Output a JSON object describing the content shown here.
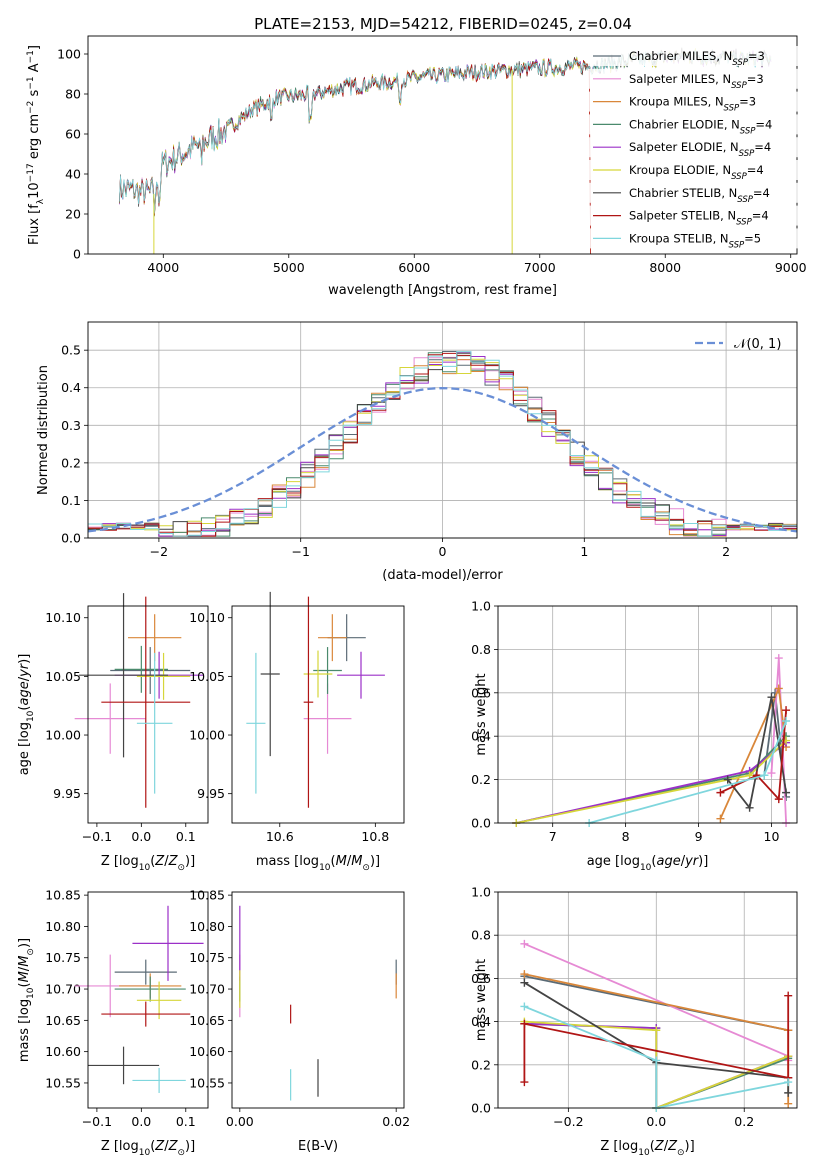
{
  "title": "PLATE=2153, MJD=54212, FIBERID=0245, z=0.04",
  "colors": {
    "Chabrier MILES": "#5b6b76",
    "Salpeter MILES": "#e68ad4",
    "Kroupa MILES": "#d9873a",
    "Chabrier ELODIE": "#4a8a6d",
    "Salpeter ELODIE": "#9b30c8",
    "Kroupa ELODIE": "#d6d63a",
    "Chabrier STELIB": "#444444",
    "Salpeter STELIB": "#b01515",
    "Kroupa STELIB": "#7fd6dd",
    "normal": "#6a8fd6",
    "extra_green": "#a8d63a"
  },
  "chart_data": [
    {
      "type": "line",
      "name": "spectrum",
      "xlabel": "wavelength [Angstrom, rest frame]",
      "ylabel": "Flux [f",
      "ylabel_sub": "λ",
      "ylabel_rest": "10",
      "ylabel_exp": "−17",
      "ylabel_tail": " erg cm",
      "ylabel_exp2": "−2",
      "ylabel_tail2": " s",
      "ylabel_exp3": "−1",
      "ylabel_tail3": " A",
      "ylabel_exp4": "−1",
      "ylabel_end": "]",
      "xlim": [
        3400,
        9050
      ],
      "ylim": [
        0,
        109
      ],
      "xticks": [
        4000,
        5000,
        6000,
        7000,
        8000,
        9000
      ],
      "yticks": [
        0,
        20,
        40,
        60,
        80,
        100
      ],
      "legend_position": "top-right",
      "series": [
        {
          "name": "Chabrier MILES",
          "nssp": "3"
        },
        {
          "name": "Salpeter MILES",
          "nssp": "3"
        },
        {
          "name": "Kroupa MILES",
          "nssp": "3"
        },
        {
          "name": "Chabrier ELODIE",
          "nssp": "4"
        },
        {
          "name": "Salpeter ELODIE",
          "nssp": "4"
        },
        {
          "name": "Kroupa ELODIE",
          "nssp": "4"
        },
        {
          "name": "Chabrier STELIB",
          "nssp": "4"
        },
        {
          "name": "Salpeter STELIB",
          "nssp": "4"
        },
        {
          "name": "Kroupa STELIB",
          "nssp": "5"
        }
      ],
      "continuum": [
        [
          3650,
          33
        ],
        [
          3900,
          30
        ],
        [
          4000,
          45
        ],
        [
          4300,
          55
        ],
        [
          4500,
          62
        ],
        [
          4700,
          72
        ],
        [
          4900,
          78
        ],
        [
          5200,
          80
        ],
        [
          5500,
          84
        ],
        [
          5800,
          86
        ],
        [
          6000,
          88
        ],
        [
          6500,
          91
        ],
        [
          7000,
          93
        ],
        [
          7400,
          94
        ],
        [
          7800,
          97
        ],
        [
          8200,
          99
        ],
        [
          8500,
          98
        ],
        [
          8850,
          97
        ]
      ]
    },
    {
      "type": "line",
      "name": "residual histogram",
      "xlabel": "(data-model)/error",
      "ylabel": "Normed distribution",
      "xlim": [
        -2.5,
        2.5
      ],
      "ylim": [
        0,
        0.575
      ],
      "xticks": [
        -2,
        -1,
        0,
        1,
        2
      ],
      "yticks": [
        0.0,
        0.1,
        0.2,
        0.3,
        0.4,
        0.5
      ],
      "grid": true,
      "legend_position": "top-right",
      "legend_label": "𝒩(0, 1)",
      "bin_width": 0.1
    },
    {
      "type": "scatter",
      "name": "age vs Z",
      "xlabel": "Z [log10(Z/Z⊙)]",
      "ylabel": "age  [log10(age/yr)]",
      "xlim": [
        -0.12,
        0.15
      ],
      "ylim": [
        9.925,
        10.11
      ],
      "xticks": [
        -0.1,
        0.0,
        0.1
      ],
      "yticks": [
        9.95,
        10.0,
        10.05,
        10.1
      ],
      "points": [
        {
          "series": "Chabrier MILES",
          "x": 0.02,
          "xerr": 0.09,
          "y": 10.055,
          "yerr": 0.02
        },
        {
          "series": "Salpeter MILES",
          "x": -0.07,
          "xerr": 0.08,
          "y": 10.014,
          "yerr": 0.03
        },
        {
          "series": "Kroupa MILES",
          "x": 0.03,
          "xerr": 0.06,
          "y": 10.083,
          "yerr": 0.02
        },
        {
          "series": "Chabrier ELODIE",
          "x": 0.0,
          "xerr": 0.06,
          "y": 10.056,
          "yerr": 0.02
        },
        {
          "series": "Salpeter ELODIE",
          "x": 0.04,
          "xerr": 0.1,
          "y": 10.051,
          "yerr": 0.02
        },
        {
          "series": "Kroupa ELODIE",
          "x": 0.05,
          "xerr": 0.06,
          "y": 10.05,
          "yerr": 0.02
        },
        {
          "series": "Chabrier STELIB",
          "x": -0.04,
          "xerr": 0.1,
          "y": 10.051,
          "yerr": 0.07
        },
        {
          "series": "Salpeter STELIB",
          "x": 0.01,
          "xerr": 0.1,
          "y": 10.028,
          "yerr": 0.09
        },
        {
          "series": "Kroupa STELIB",
          "x": 0.03,
          "xerr": 0.04,
          "y": 10.01,
          "yerr": 0.06
        }
      ]
    },
    {
      "type": "scatter",
      "name": "age vs mass",
      "xlabel": "mass [log10(M/M⊙)]",
      "ylabel": "",
      "xlim": [
        10.5,
        10.86
      ],
      "ylim": [
        9.925,
        10.11
      ],
      "xticks": [
        10.6,
        10.8
      ],
      "yticks": [
        9.95,
        10.0,
        10.05,
        10.1
      ],
      "points": [
        {
          "series": "Chabrier MILES",
          "x": 10.74,
          "xerr": 0.04,
          "y": 10.083,
          "yerr": 0.02
        },
        {
          "series": "Salpeter MILES",
          "x": 10.7,
          "xerr": 0.05,
          "y": 10.014,
          "yerr": 0.03
        },
        {
          "series": "Kroupa MILES",
          "x": 10.71,
          "xerr": 0.03,
          "y": 10.083,
          "yerr": 0.02
        },
        {
          "series": "Chabrier ELODIE",
          "x": 10.7,
          "xerr": 0.03,
          "y": 10.055,
          "yerr": 0.02
        },
        {
          "series": "Salpeter ELODIE",
          "x": 10.77,
          "xerr": 0.05,
          "y": 10.051,
          "yerr": 0.02
        },
        {
          "series": "Kroupa ELODIE",
          "x": 10.68,
          "xerr": 0.03,
          "y": 10.052,
          "yerr": 0.02
        },
        {
          "series": "Chabrier STELIB",
          "x": 10.58,
          "xerr": 0.02,
          "y": 10.052,
          "yerr": 0.07
        },
        {
          "series": "Salpeter STELIB",
          "x": 10.66,
          "xerr": 0.01,
          "y": 10.028,
          "yerr": 0.09
        },
        {
          "series": "Kroupa STELIB",
          "x": 10.55,
          "xerr": 0.02,
          "y": 10.01,
          "yerr": 0.06
        }
      ]
    },
    {
      "type": "line",
      "name": "mass weight vs age",
      "xlabel": "age  [log10(age/yr)]",
      "ylabel": "mass weight",
      "xlim": [
        6.25,
        10.35
      ],
      "ylim": [
        0,
        1.0
      ],
      "xticks": [
        7,
        8,
        9,
        10
      ],
      "yticks": [
        0.0,
        0.2,
        0.4,
        0.6,
        0.8,
        1.0
      ],
      "grid": true,
      "series": [
        {
          "name": "Chabrier MILES",
          "x": [
            9.9,
            10.05,
            10.2
          ],
          "y": [
            0.22,
            0.6,
            0.12
          ]
        },
        {
          "name": "Salpeter MILES",
          "x": [
            10.0,
            10.1,
            10.2
          ],
          "y": [
            0.23,
            0.76,
            0.0
          ]
        },
        {
          "name": "Kroupa MILES",
          "x": [
            9.3,
            10.1,
            10.2
          ],
          "y": [
            0.02,
            0.62,
            0.35
          ]
        },
        {
          "name": "Chabrier ELODIE",
          "x": [
            6.5,
            9.7,
            10.2
          ],
          "y": [
            0.0,
            0.23,
            0.4
          ]
        },
        {
          "name": "Salpeter ELODIE",
          "x": [
            6.5,
            9.7,
            10.2
          ],
          "y": [
            0.0,
            0.24,
            0.37
          ]
        },
        {
          "name": "Kroupa ELODIE",
          "x": [
            6.5,
            9.7,
            10.2
          ],
          "y": [
            0.0,
            0.22,
            0.38
          ]
        },
        {
          "name": "Chabrier STELIB",
          "x": [
            9.4,
            9.7,
            10.0,
            10.2
          ],
          "y": [
            0.2,
            0.07,
            0.58,
            0.14
          ]
        },
        {
          "name": "Salpeter STELIB",
          "x": [
            9.3,
            9.8,
            10.1,
            10.2
          ],
          "y": [
            0.14,
            0.22,
            0.11,
            0.52
          ]
        },
        {
          "name": "Kroupa STELIB",
          "x": [
            7.5,
            9.9,
            10.2
          ],
          "y": [
            0.0,
            0.22,
            0.47
          ]
        }
      ]
    },
    {
      "type": "scatter",
      "name": "mass vs Z",
      "xlabel": "Z [log10(Z/Z⊙)]",
      "ylabel": "mass [log10(M/M⊙)]",
      "xlim": [
        -0.12,
        0.15
      ],
      "ylim": [
        10.51,
        10.855
      ],
      "xticks": [
        -0.1,
        0.0,
        0.1
      ],
      "yticks": [
        10.55,
        10.6,
        10.65,
        10.7,
        10.75,
        10.8,
        10.85
      ],
      "points": [
        {
          "series": "Chabrier MILES",
          "x": 0.01,
          "xerr": 0.07,
          "y": 10.727,
          "yerr": 0.02
        },
        {
          "series": "Salpeter MILES",
          "x": -0.07,
          "xerr": 0.08,
          "y": 10.705,
          "yerr": 0.05
        },
        {
          "series": "Kroupa MILES",
          "x": 0.02,
          "xerr": 0.07,
          "y": 10.705,
          "yerr": 0.02
        },
        {
          "series": "Chabrier ELODIE",
          "x": 0.02,
          "xerr": 0.08,
          "y": 10.7,
          "yerr": 0.02
        },
        {
          "series": "Salpeter ELODIE",
          "x": 0.06,
          "xerr": 0.08,
          "y": 10.773,
          "yerr": 0.06
        },
        {
          "series": "Kroupa ELODIE",
          "x": 0.04,
          "xerr": 0.05,
          "y": 10.682,
          "yerr": 0.03
        },
        {
          "series": "Chabrier STELIB",
          "x": -0.04,
          "xerr": 0.08,
          "y": 10.578,
          "yerr": 0.03
        },
        {
          "series": "Salpeter STELIB",
          "x": 0.01,
          "xerr": 0.1,
          "y": 10.66,
          "yerr": 0.02
        },
        {
          "series": "Kroupa STELIB",
          "x": 0.04,
          "xerr": 0.06,
          "y": 10.554,
          "yerr": 0.02
        }
      ]
    },
    {
      "type": "scatter",
      "name": "mass vs E(B-V)",
      "xlabel": "E(B-V)",
      "ylabel": "",
      "xlim": [
        -0.001,
        0.021
      ],
      "ylim": [
        10.51,
        10.855
      ],
      "xticks": [
        0.0,
        0.02
      ],
      "yticks": [
        10.55,
        10.6,
        10.65,
        10.7,
        10.75,
        10.8,
        10.85
      ],
      "points": [
        {
          "series": "Chabrier MILES",
          "x": 0.02,
          "y": 10.727,
          "yerr": 0.02
        },
        {
          "series": "Salpeter MILES",
          "x": 0.0,
          "y": 10.705,
          "yerr": 0.05
        },
        {
          "series": "Kroupa MILES",
          "x": 0.02,
          "y": 10.705,
          "yerr": 0.02
        },
        {
          "series": "Chabrier ELODIE",
          "x": 0.0,
          "y": 10.7,
          "yerr": 0.02
        },
        {
          "series": "Salpeter ELODIE",
          "x": 0.0,
          "y": 10.773,
          "yerr": 0.06
        },
        {
          "series": "Kroupa ELODIE",
          "x": 0.0,
          "y": 10.7,
          "yerr": 0.03
        },
        {
          "series": "Chabrier STELIB",
          "x": 0.01,
          "y": 10.558,
          "yerr": 0.03
        },
        {
          "series": "Salpeter STELIB",
          "x": 0.0065,
          "y": 10.66,
          "yerr": 0.015
        },
        {
          "series": "Kroupa STELIB",
          "x": 0.0065,
          "y": 10.547,
          "yerr": 0.025
        }
      ]
    },
    {
      "type": "line",
      "name": "mass weight vs Z",
      "xlabel": "Z [log10(Z/Z⊙)]",
      "ylabel": "mass weight",
      "xlim": [
        -0.36,
        0.32
      ],
      "ylim": [
        0,
        1.0
      ],
      "xticks": [
        -0.2,
        0.0,
        0.2
      ],
      "yticks": [
        0.0,
        0.2,
        0.4,
        0.6,
        0.8,
        1.0
      ],
      "grid": true,
      "series": [
        {
          "name": "Chabrier MILES",
          "x": [
            -0.3,
            0.3
          ],
          "y": [
            0.61,
            0.36
          ]
        },
        {
          "name": "Salpeter MILES",
          "x": [
            -0.3,
            0.3,
            0.3
          ],
          "y": [
            0.76,
            0.24,
            0.22
          ]
        },
        {
          "name": "Kroupa MILES",
          "x": [
            -0.3,
            0.3,
            0.3
          ],
          "y": [
            0.62,
            0.36,
            0.02
          ]
        },
        {
          "name": "Chabrier ELODIE",
          "x": [
            -0.3,
            0.0,
            0.0,
            0.3
          ],
          "y": [
            0.39,
            0.37,
            0.0,
            0.23
          ]
        },
        {
          "name": "Salpeter ELODIE",
          "x": [
            -0.3,
            0.0,
            0.0,
            0.3
          ],
          "y": [
            0.39,
            0.37,
            0.0,
            0.24
          ]
        },
        {
          "name": "Kroupa ELODIE",
          "x": [
            -0.3,
            0.0,
            0.0,
            0.3
          ],
          "y": [
            0.4,
            0.36,
            0.0,
            0.24
          ]
        },
        {
          "name": "Chabrier STELIB",
          "x": [
            -0.3,
            0.0,
            0.3,
            0.3
          ],
          "y": [
            0.58,
            0.21,
            0.14,
            0.07
          ]
        },
        {
          "name": "Salpeter STELIB",
          "x": [
            -0.3,
            -0.3,
            0.3,
            0.3
          ],
          "y": [
            0.12,
            0.39,
            0.14,
            0.52
          ]
        },
        {
          "name": "Kroupa STELIB",
          "x": [
            -0.3,
            0.0,
            0.0,
            0.3
          ],
          "y": [
            0.47,
            0.22,
            0.0,
            0.12
          ]
        }
      ]
    }
  ]
}
